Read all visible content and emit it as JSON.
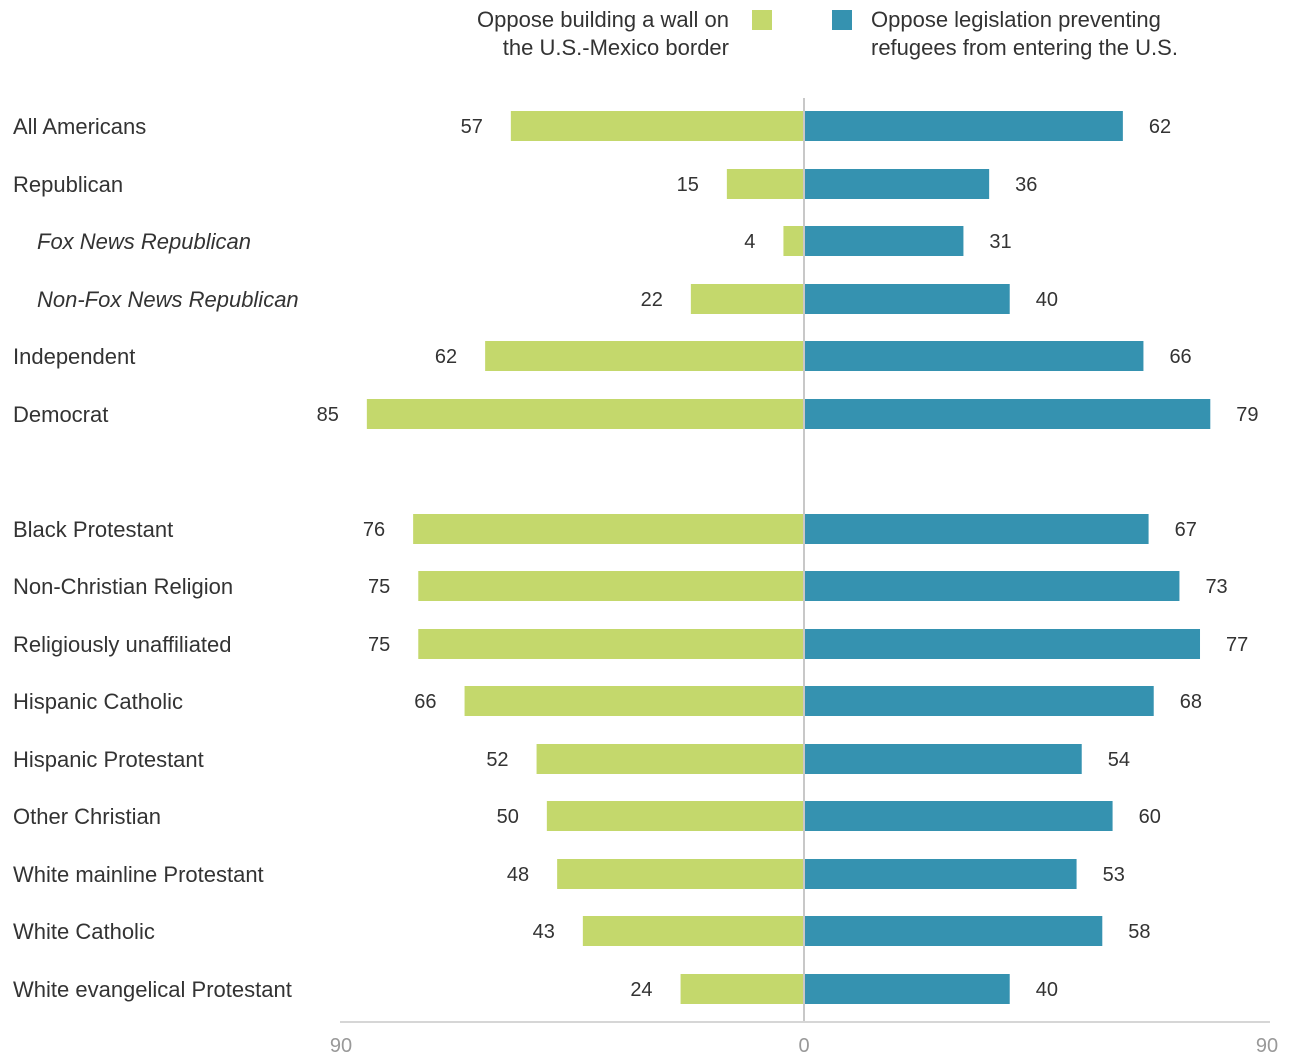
{
  "chart_data": {
    "type": "bar",
    "orientation": "horizontal-diverging",
    "legend": [
      {
        "lines": [
          "Oppose building a wall on",
          "the U.S.-Mexico border"
        ],
        "color": "#c4d86c"
      },
      {
        "lines": [
          "Oppose legislation preventing",
          "refugees from entering the U.S."
        ],
        "color": "#3592b0"
      }
    ],
    "xlim": [
      90,
      0,
      90
    ],
    "x_ticks": [
      "90",
      "0",
      "90"
    ],
    "rows": [
      {
        "category": "All Americans",
        "italic": false,
        "wall": 57,
        "refugees": 62
      },
      {
        "category": "Republican",
        "italic": false,
        "wall": 15,
        "refugees": 36
      },
      {
        "category": "Fox News Republican",
        "italic": true,
        "wall": 4,
        "refugees": 31
      },
      {
        "category": "Non-Fox News Republican",
        "italic": true,
        "wall": 22,
        "refugees": 40
      },
      {
        "category": "Independent",
        "italic": false,
        "wall": 62,
        "refugees": 66
      },
      {
        "category": "Democrat",
        "italic": false,
        "wall": 85,
        "refugees": 79
      },
      {
        "category": "Black Protestant",
        "italic": false,
        "wall": 76,
        "refugees": 67
      },
      {
        "category": "Non-Christian Religion",
        "italic": false,
        "wall": 75,
        "refugees": 73
      },
      {
        "category": "Religiously unaffiliated",
        "italic": false,
        "wall": 75,
        "refugees": 77
      },
      {
        "category": "Hispanic Catholic",
        "italic": false,
        "wall": 66,
        "refugees": 68
      },
      {
        "category": "Hispanic Protestant",
        "italic": false,
        "wall": 52,
        "refugees": 54
      },
      {
        "category": "Other Christian",
        "italic": false,
        "wall": 50,
        "refugees": 60
      },
      {
        "category": "White mainline Protestant",
        "italic": false,
        "wall": 48,
        "refugees": 53
      },
      {
        "category": "White Catholic",
        "italic": false,
        "wall": 43,
        "refugees": 58
      },
      {
        "category": "White evangelical Protestant",
        "italic": false,
        "wall": 24,
        "refugees": 40
      }
    ],
    "grid": false
  }
}
